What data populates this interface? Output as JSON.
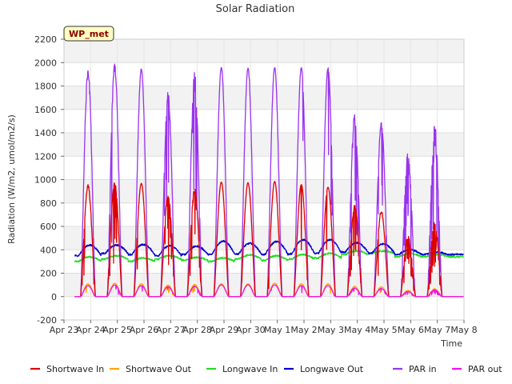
{
  "chart_data": {
    "type": "line",
    "title": "Solar Radiation",
    "xlabel": "Time",
    "ylabel": "Radiation (W/m2, umol/m2/s)",
    "ylim": [
      -200,
      2200
    ],
    "xlim": [
      0,
      15
    ],
    "yticks": [
      -200,
      0,
      200,
      400,
      600,
      800,
      1000,
      1200,
      1400,
      1600,
      1800,
      2000,
      2200
    ],
    "xtick_labels": [
      "Apr 23",
      "Apr 24",
      "Apr 25",
      "Apr 26",
      "Apr 27",
      "Apr 28",
      "Apr 29",
      "Apr 30",
      "May 1",
      "May 2",
      "May 3",
      "May 4",
      "May 5",
      "May 6",
      "May 7",
      "May 8"
    ],
    "grid": true,
    "legend_position": "bottom",
    "badge": "WP_met",
    "day_starts": [
      0.4,
      1.4,
      2.4,
      3.4,
      4.4,
      5.4,
      6.4,
      7.4,
      8.4,
      9.4,
      10.4,
      11.4,
      12.4,
      13.4,
      14.4
    ],
    "series": [
      {
        "name": "Shortwave In",
        "color": "#dd0000",
        "kind": "diurnal",
        "daily_peak": [
          960,
          980,
          970,
          880,
          940,
          980,
          975,
          985,
          960,
          940,
          790,
          740,
          520,
          640
        ],
        "noise": [
          0.12,
          0.08,
          0.02,
          0.14,
          0.25,
          0.01,
          0.02,
          0.01,
          0.02,
          0.03,
          0.25,
          0.15,
          0.3,
          0.4
        ]
      },
      {
        "name": "Shortwave Out",
        "color": "#ffa500",
        "kind": "diurnal",
        "daily_peak": [
          110,
          115,
          110,
          100,
          105,
          110,
          110,
          115,
          110,
          110,
          90,
          85,
          55,
          70
        ],
        "noise": [
          0.1,
          0.08,
          0.02,
          0.12,
          0.2,
          0.01,
          0.02,
          0.01,
          0.02,
          0.03,
          0.2,
          0.15,
          0.3,
          0.4
        ]
      },
      {
        "name": "Longwave In",
        "color": "#22dd22",
        "kind": "baseline",
        "base": [
          300,
          320,
          300,
          320,
          310,
          300,
          320,
          310,
          320,
          330,
          360,
          370,
          340,
          340
        ],
        "amp": [
          40,
          30,
          30,
          30,
          25,
          30,
          35,
          40,
          40,
          40,
          30,
          20,
          30,
          20
        ]
      },
      {
        "name": "Longwave Out",
        "color": "#0000cc",
        "kind": "baseline",
        "base": [
          350,
          370,
          360,
          350,
          360,
          360,
          365,
          360,
          365,
          370,
          380,
          370,
          360,
          360
        ],
        "amp": [
          90,
          70,
          85,
          85,
          70,
          115,
          90,
          110,
          120,
          115,
          80,
          80,
          40,
          20
        ]
      },
      {
        "name": "PAR in",
        "color": "#9933ee",
        "kind": "diurnal",
        "daily_peak": [
          1960,
          2000,
          1950,
          1760,
          1930,
          1960,
          1960,
          1960,
          1960,
          1960,
          1560,
          1490,
          1240,
          1480
        ],
        "noise": [
          0.15,
          0.12,
          0.03,
          0.2,
          0.3,
          0.01,
          0.02,
          0.01,
          0.02,
          0.03,
          0.3,
          0.12,
          0.4,
          0.45
        ]
      },
      {
        "name": "PAR out",
        "color": "#ee11ee",
        "kind": "diurnal",
        "daily_peak": [
          95,
          100,
          95,
          85,
          90,
          100,
          100,
          100,
          95,
          95,
          75,
          70,
          45,
          60
        ],
        "noise": [
          0.1,
          0.08,
          0.02,
          0.12,
          0.2,
          0.01,
          0.02,
          0.01,
          0.02,
          0.03,
          0.2,
          0.15,
          0.3,
          0.4
        ]
      }
    ]
  }
}
